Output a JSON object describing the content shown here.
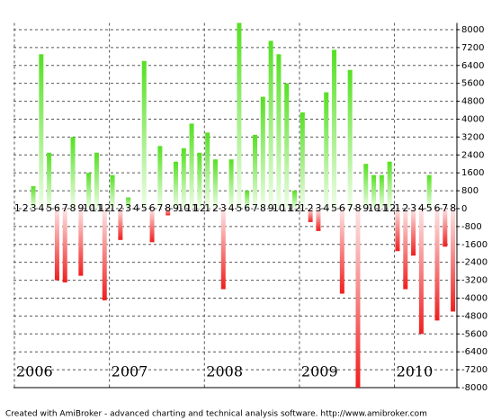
{
  "chart_data": {
    "type": "bar",
    "categories": [
      "1",
      "2",
      "3",
      "4",
      "5",
      "6",
      "7",
      "8",
      "9",
      "10",
      "11",
      "12",
      "1",
      "2",
      "3",
      "4",
      "5",
      "6",
      "7",
      "8",
      "9",
      "10",
      "11",
      "12",
      "1",
      "2",
      "3",
      "4",
      "5",
      "6",
      "7",
      "8",
      "9",
      "10",
      "11",
      "12",
      "1",
      "2",
      "3",
      "4",
      "5",
      "6",
      "7",
      "8",
      "9",
      "10",
      "11",
      "12",
      "1",
      "2",
      "3",
      "4",
      "5",
      "6",
      "7",
      "8"
    ],
    "values": [
      0,
      0,
      1000,
      6900,
      2500,
      -3200,
      -3300,
      3200,
      -3000,
      1600,
      2500,
      -4100,
      1500,
      -1400,
      500,
      0,
      6600,
      -1500,
      2800,
      -300,
      2100,
      2700,
      3800,
      2500,
      3400,
      2200,
      -3600,
      2200,
      8300,
      800,
      3300,
      5000,
      7500,
      6900,
      5600,
      800,
      4300,
      -600,
      -1000,
      5200,
      7100,
      -3800,
      6200,
      -8000,
      2000,
      1500,
      1500,
      2100,
      -1900,
      -3600,
      -2100,
      -5600,
      1500,
      -5000,
      -1700,
      -4600
    ],
    "year_labels": [
      "2006",
      "2007",
      "2008",
      "2009",
      "2010"
    ],
    "colors": {
      "positive": "#55e022",
      "negative": "#f01e1e"
    },
    "ylim": [
      -8000,
      8300
    ],
    "yticks": [
      8000,
      7200,
      6400,
      5600,
      4800,
      4000,
      3200,
      2400,
      1600,
      800,
      0,
      -800,
      -1600,
      -2400,
      -3200,
      -4000,
      -4800,
      -5600,
      -6400,
      -7200,
      -8000
    ],
    "grid": true,
    "footer": "Created with AmiBroker - advanced charting and technical analysis software. http://www.amibroker.com"
  }
}
